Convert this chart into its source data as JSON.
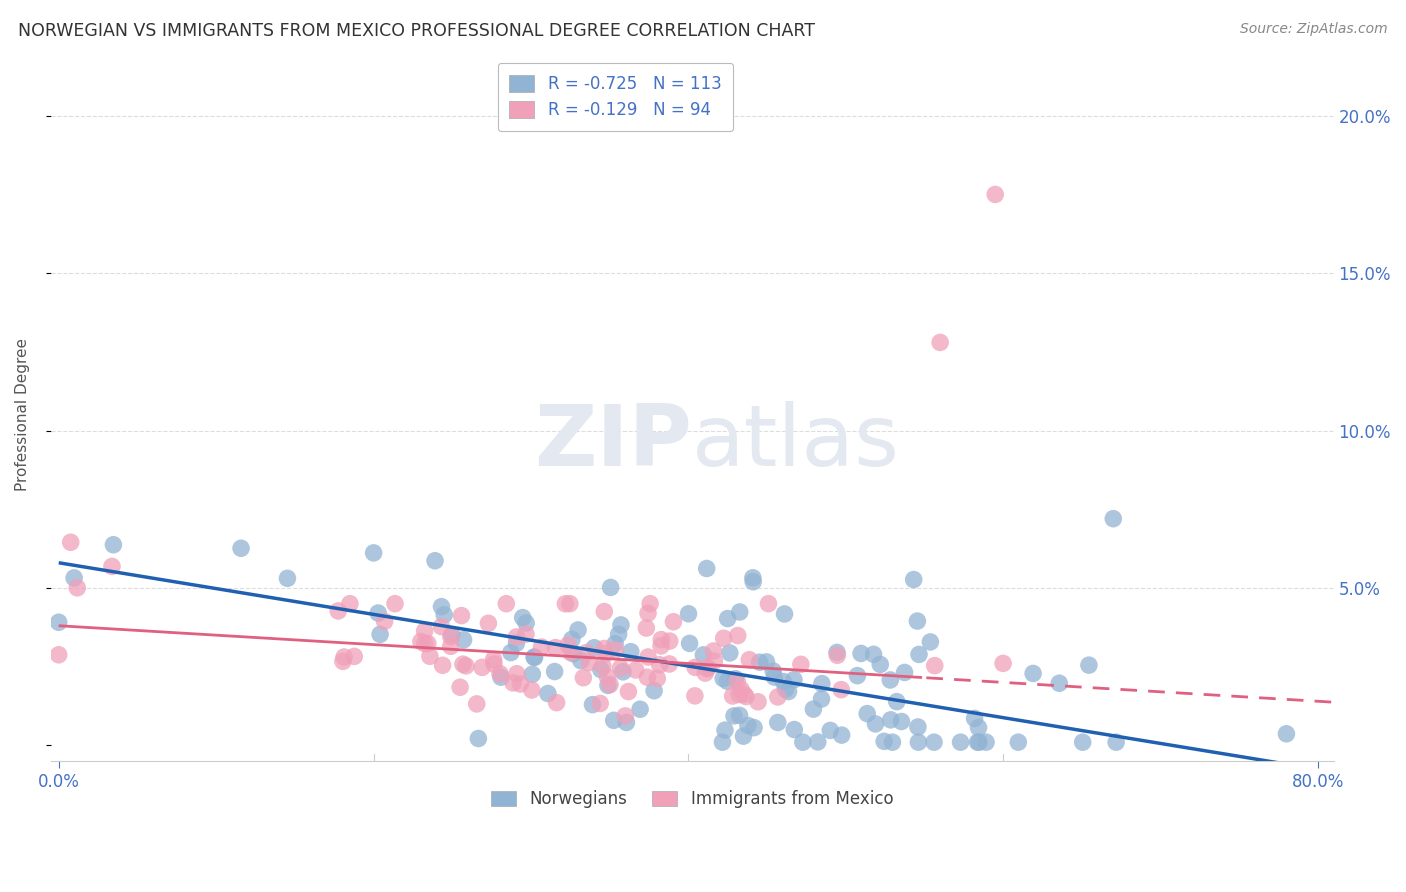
{
  "title": "NORWEGIAN VS IMMIGRANTS FROM MEXICO PROFESSIONAL DEGREE CORRELATION CHART",
  "source": "Source: ZipAtlas.com",
  "ylabel": "Professional Degree",
  "watermark_zip": "ZIP",
  "watermark_atlas": "atlas",
  "legend_norwegian": "R = -0.725   N = 113",
  "legend_mexico": "R = -0.129   N = 94",
  "legend_label1": "Norwegians",
  "legend_label2": "Immigrants from Mexico",
  "norwegian_color": "#92b4d4",
  "mexico_color": "#f0a0b8",
  "norwegian_line_color": "#2060b0",
  "mexico_line_color": "#e06080",
  "xlim": [
    -0.005,
    0.81
  ],
  "ylim": [
    -0.005,
    0.215
  ],
  "yticks": [
    0.0,
    0.05,
    0.1,
    0.15,
    0.2
  ],
  "yticklabels_right": [
    "",
    "5.0%",
    "10.0%",
    "15.0%",
    "20.0%"
  ],
  "background_color": "#ffffff",
  "grid_color": "#dddddd",
  "title_color": "#333333",
  "source_color": "#888888",
  "tick_color": "#4472c4",
  "axis_color": "#cccccc",
  "nor_line_intercept": 0.058,
  "nor_line_slope": -0.082,
  "mex_line_intercept": 0.038,
  "mex_line_slope": -0.03
}
